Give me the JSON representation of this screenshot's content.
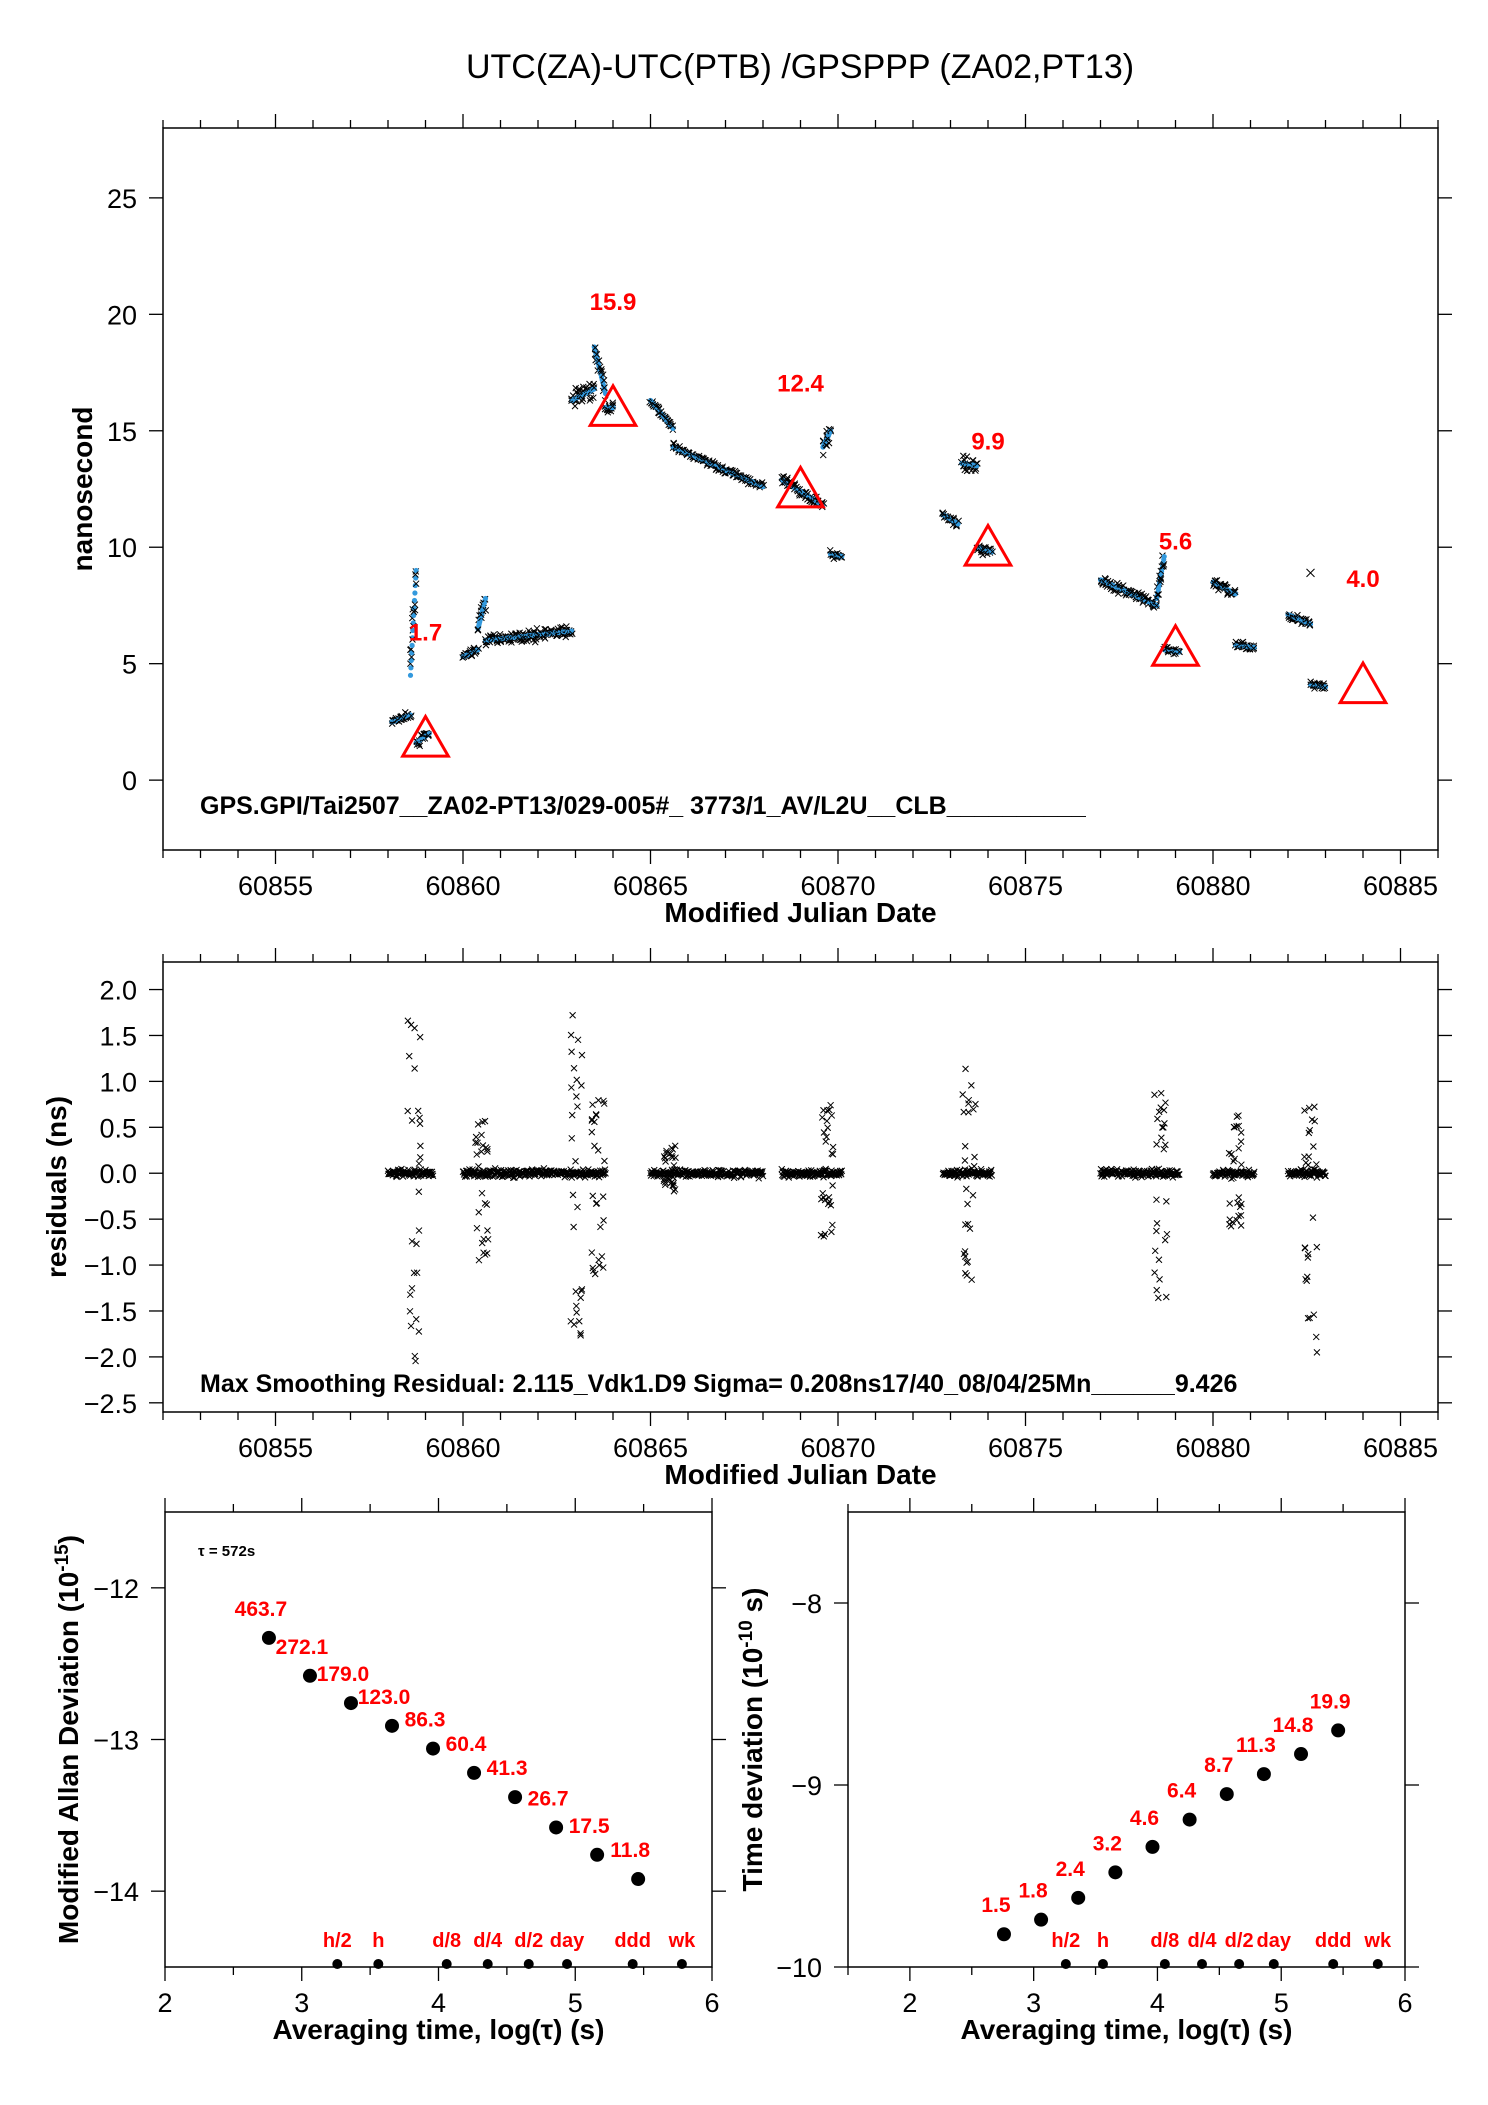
{
  "figure_title": "UTC(ZA)-UTC(PTB)  /GPSPPP  (ZA02,PT13)",
  "colors": {
    "axis": "#000000",
    "points": "#000000",
    "fit": "#3399dd",
    "annotation": "#ff0000"
  },
  "chart_data": [
    {
      "id": "time-series",
      "type": "scatter",
      "xlabel": "Modified Julian Date",
      "ylabel": "nanosecond",
      "xlim": [
        60852,
        60886
      ],
      "ylim": [
        -3,
        28
      ],
      "xticks": [
        60855,
        60860,
        60865,
        60870,
        60875,
        60880,
        60885
      ],
      "yticks": [
        0,
        5,
        10,
        15,
        20,
        25
      ],
      "annotation": "GPS.GPI/Tai2507__ZA02-PT13/029-005#_  3773/1_AV/L2U__CLB__________",
      "daily_markers": [
        {
          "x": 60859,
          "y": 1.7,
          "label": "1.7"
        },
        {
          "x": 60864,
          "y": 15.9,
          "label": "15.9"
        },
        {
          "x": 60869,
          "y": 12.4,
          "label": "12.4"
        },
        {
          "x": 60874,
          "y": 9.9,
          "label": "9.9"
        },
        {
          "x": 60879,
          "y": 5.6,
          "label": "5.6"
        },
        {
          "x": 60884,
          "y": 4.0,
          "label": "4.0"
        }
      ],
      "segments": [
        {
          "x": [
            60858.1,
            60858.6
          ],
          "y": [
            2.5,
            2.8
          ],
          "noise": 0.15
        },
        {
          "x": [
            60858.6,
            60858.75
          ],
          "y": [
            4.5,
            9.0
          ],
          "noise": 0.8
        },
        {
          "x": [
            60858.75,
            60859.1
          ],
          "y": [
            1.6,
            2.0
          ],
          "noise": 0.2
        },
        {
          "x": [
            60860.0,
            60860.4
          ],
          "y": [
            5.3,
            5.6
          ],
          "noise": 0.15
        },
        {
          "x": [
            60860.4,
            60860.6
          ],
          "y": [
            6.5,
            7.8
          ],
          "noise": 0.5
        },
        {
          "x": [
            60860.6,
            60862.9
          ],
          "y": [
            6.0,
            6.4
          ],
          "noise": 0.2
        },
        {
          "x": [
            60862.9,
            60863.5
          ],
          "y": [
            16.3,
            16.8
          ],
          "noise": 0.4
        },
        {
          "x": [
            60863.5,
            60863.8
          ],
          "y": [
            18.6,
            16.6
          ],
          "noise": 0.4
        },
        {
          "x": [
            60863.8,
            60864.0
          ],
          "y": [
            16.0,
            16.0
          ],
          "noise": 0.2
        },
        {
          "x": [
            60865.0,
            60865.6
          ],
          "y": [
            16.3,
            15.1
          ],
          "noise": 0.15
        },
        {
          "x": [
            60865.6,
            60868.0
          ],
          "y": [
            14.3,
            12.6
          ],
          "noise": 0.15
        },
        {
          "x": [
            60868.5,
            60869.6
          ],
          "y": [
            12.9,
            11.8
          ],
          "noise": 0.2
        },
        {
          "x": [
            60869.6,
            60869.8
          ],
          "y": [
            14.3,
            15.0
          ],
          "noise": 0.4
        },
        {
          "x": [
            60869.8,
            60870.1
          ],
          "y": [
            9.7,
            9.6
          ],
          "noise": 0.15
        },
        {
          "x": [
            60872.8,
            60873.2
          ],
          "y": [
            11.4,
            11.0
          ],
          "noise": 0.15
        },
        {
          "x": [
            60873.3,
            60873.7
          ],
          "y": [
            13.6,
            13.5
          ],
          "noise": 0.25
        },
        {
          "x": [
            60873.7,
            60874.1
          ],
          "y": [
            10.0,
            9.8
          ],
          "noise": 0.2
        },
        {
          "x": [
            60877.0,
            60878.5
          ],
          "y": [
            8.6,
            7.5
          ],
          "noise": 0.2
        },
        {
          "x": [
            60878.5,
            60878.7
          ],
          "y": [
            7.8,
            9.6
          ],
          "noise": 0.4
        },
        {
          "x": [
            60878.7,
            60879.1
          ],
          "y": [
            5.6,
            5.5
          ],
          "noise": 0.15
        },
        {
          "x": [
            60880.0,
            60880.6
          ],
          "y": [
            8.5,
            8.0
          ],
          "noise": 0.2
        },
        {
          "x": [
            60880.6,
            60881.1
          ],
          "y": [
            5.8,
            5.7
          ],
          "noise": 0.15
        },
        {
          "x": [
            60882.0,
            60882.6
          ],
          "y": [
            7.1,
            6.7
          ],
          "noise": 0.15
        },
        {
          "x": [
            60882.6,
            60883.0
          ],
          "y": [
            4.1,
            4.0
          ],
          "noise": 0.15
        }
      ],
      "outliers": [
        {
          "x": 60882.6,
          "y": 8.9
        }
      ]
    },
    {
      "id": "residuals",
      "type": "scatter",
      "xlabel": "Modified Julian Date",
      "ylabel": "residuals (ns)",
      "xlim": [
        60852,
        60886
      ],
      "ylim": [
        -2.6,
        2.3
      ],
      "xticks": [
        60855,
        60860,
        60865,
        60870,
        60875,
        60880,
        60885
      ],
      "yticks": [
        2.0,
        1.5,
        1.0,
        0.5,
        0.0,
        -0.5,
        -1.0,
        -1.5,
        -2.0,
        -2.5
      ],
      "ytick_labels": [
        "2.0",
        "1.5",
        "1.0",
        "0.5",
        "0.0",
        "−0.5",
        "−1.0",
        "−1.5",
        "−2.0",
        "−2.5"
      ],
      "annotation": "Max Smoothing Residual: 2.115_Vdk1.D9  Sigma= 0.208ns17/40_08/04/25Mn______9.426",
      "bursts": [
        {
          "x": 60858.7,
          "ymin": -2.1,
          "ymax": 1.7
        },
        {
          "x": 60860.5,
          "ymin": -0.95,
          "ymax": 0.6
        },
        {
          "x": 60863.0,
          "ymin": -1.8,
          "ymax": 1.8
        },
        {
          "x": 60863.6,
          "ymin": -1.1,
          "ymax": 0.8
        },
        {
          "x": 60865.5,
          "ymin": -0.2,
          "ymax": 0.3
        },
        {
          "x": 60869.7,
          "ymin": -0.95,
          "ymax": 0.75
        },
        {
          "x": 60873.5,
          "ymin": -1.2,
          "ymax": 1.2
        },
        {
          "x": 60878.6,
          "ymin": -1.4,
          "ymax": 0.9
        },
        {
          "x": 60880.6,
          "ymin": -0.6,
          "ymax": 0.65
        },
        {
          "x": 60882.6,
          "ymin": -2.1,
          "ymax": 0.75
        }
      ],
      "clusters": [
        [
          60858.0,
          60859.2
        ],
        [
          60860.0,
          60863.8
        ],
        [
          60865.0,
          60868.0
        ],
        [
          60868.5,
          60870.1
        ],
        [
          60872.8,
          60874.1
        ],
        [
          60877.0,
          60879.1
        ],
        [
          60880.0,
          60881.1
        ],
        [
          60882.0,
          60883.0
        ]
      ]
    },
    {
      "id": "mod-allan",
      "type": "scatter",
      "xlabel": "Averaging time, log(τ) (s)",
      "ylabel": "Modified Allan Deviation (10",
      "ylabel_exp": "-15",
      "ylabel_end": ")",
      "xlim": [
        2,
        6
      ],
      "ylim": [
        -14.5,
        -11.5
      ],
      "xticks": [
        2,
        3,
        4,
        5,
        6
      ],
      "yticks": [
        -12,
        -13,
        -14
      ],
      "ytick_labels": [
        "−12",
        "−13",
        "−14"
      ],
      "tau_note": "τ = 572s",
      "x": [
        2.76,
        3.06,
        3.36,
        3.66,
        3.96,
        4.26,
        4.56,
        4.86,
        5.16,
        5.46
      ],
      "y": [
        -12.33,
        -12.58,
        -12.76,
        -12.91,
        -13.06,
        -13.22,
        -13.38,
        -13.58,
        -13.76,
        -13.92
      ],
      "point_labels": [
        "463.7",
        "272.1",
        "179.0",
        "123.0",
        "86.3",
        "60.4",
        "41.3",
        "26.7",
        "17.5",
        "11.8"
      ],
      "markers": [
        {
          "x": 3.26,
          "label": "h/2"
        },
        {
          "x": 3.56,
          "label": "h"
        },
        {
          "x": 4.06,
          "label": "d/8"
        },
        {
          "x": 4.36,
          "label": "d/4"
        },
        {
          "x": 4.66,
          "label": "d/2"
        },
        {
          "x": 4.94,
          "label": "day"
        },
        {
          "x": 5.42,
          "label": "ddd"
        },
        {
          "x": 5.78,
          "label": "wk"
        }
      ]
    },
    {
      "id": "time-dev",
      "type": "scatter",
      "xlabel": "Averaging time, log(τ) (s)",
      "ylabel": "Time deviation (10",
      "ylabel_exp": "-10",
      "ylabel_end": " s)",
      "xlim": [
        1.5,
        6
      ],
      "ylim": [
        -10,
        -7.5
      ],
      "xticks": [
        2,
        3,
        4,
        5,
        6
      ],
      "yticks": [
        -8,
        -9,
        -10
      ],
      "ytick_labels": [
        "−8",
        "−9",
        "−10"
      ],
      "x": [
        2.76,
        3.06,
        3.36,
        3.66,
        3.96,
        4.26,
        4.56,
        4.86,
        5.16,
        5.46
      ],
      "y": [
        -9.82,
        -9.74,
        -9.62,
        -9.48,
        -9.34,
        -9.19,
        -9.05,
        -8.94,
        -8.83,
        -8.7
      ],
      "point_labels": [
        "1.5",
        "1.8",
        "2.4",
        "3.2",
        "4.6",
        "6.4",
        "8.7",
        "11.3",
        "14.8",
        "19.9"
      ],
      "markers": [
        {
          "x": 3.26,
          "label": "h/2"
        },
        {
          "x": 3.56,
          "label": "h"
        },
        {
          "x": 4.06,
          "label": "d/8"
        },
        {
          "x": 4.36,
          "label": "d/4"
        },
        {
          "x": 4.66,
          "label": "d/2"
        },
        {
          "x": 4.94,
          "label": "day"
        },
        {
          "x": 5.42,
          "label": "ddd"
        },
        {
          "x": 5.78,
          "label": "wk"
        }
      ]
    }
  ]
}
